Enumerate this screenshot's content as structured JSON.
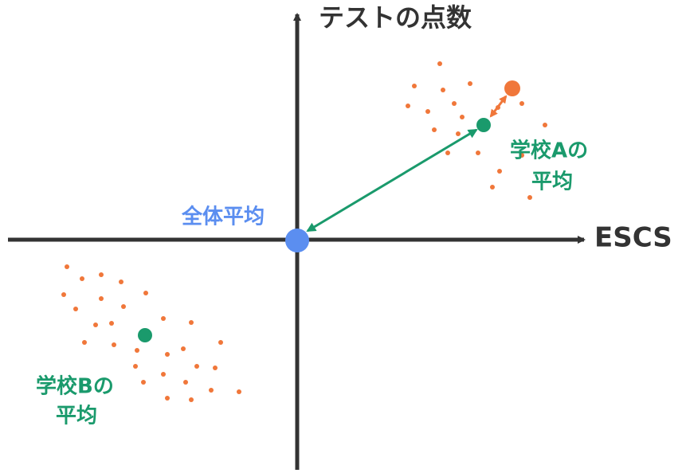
{
  "axes": {
    "y_label": "テストの点数",
    "x_label": "ESCS"
  },
  "labels": {
    "overall_mean": "全体平均",
    "school_a_mean": [
      "学校Aの",
      "平均"
    ],
    "school_b_mean": [
      "学校Bの",
      "平均"
    ]
  }
}
